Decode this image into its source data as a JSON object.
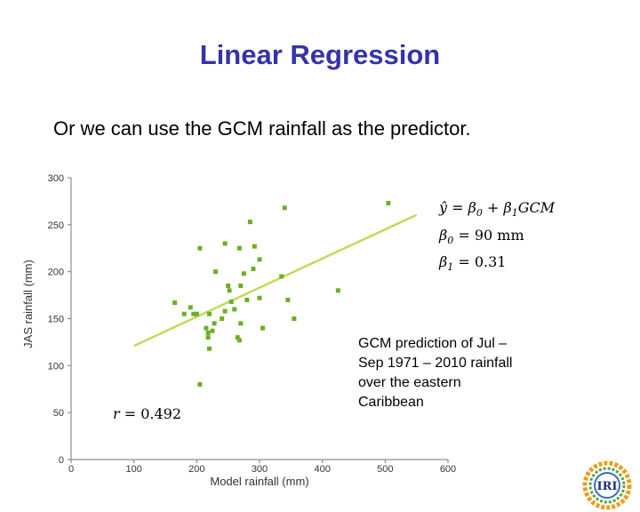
{
  "slide": {
    "title": "Linear Regression",
    "subtitle": "Or we can use the GCM rainfall as the predictor.",
    "caption_lines": [
      "GCM prediction of Jul –",
      "Sep 1971 – 2010  rainfall",
      "over the eastern",
      "Caribbean"
    ]
  },
  "logo": {
    "text": "IRI",
    "icon": "iri-logo-icon"
  },
  "chart_data": {
    "type": "scatter",
    "xlabel": "Model rainfall (mm)",
    "ylabel": "JAS rainfall (mm)",
    "xlim": [
      0,
      600
    ],
    "ylim": [
      0,
      300
    ],
    "x_ticks": [
      0,
      100,
      200,
      300,
      400,
      500,
      600
    ],
    "y_ticks": [
      0,
      50,
      100,
      150,
      200,
      250,
      300
    ],
    "point_color": "#6ab023",
    "line_color": "#c5d95a",
    "points": [
      [
        165,
        167
      ],
      [
        180,
        155
      ],
      [
        190,
        162
      ],
      [
        195,
        155
      ],
      [
        200,
        155
      ],
      [
        205,
        80
      ],
      [
        205,
        225
      ],
      [
        215,
        140
      ],
      [
        218,
        130
      ],
      [
        218,
        135
      ],
      [
        220,
        155
      ],
      [
        220,
        118
      ],
      [
        225,
        137
      ],
      [
        228,
        145
      ],
      [
        230,
        200
      ],
      [
        240,
        150
      ],
      [
        245,
        230
      ],
      [
        245,
        158
      ],
      [
        250,
        185
      ],
      [
        252,
        180
      ],
      [
        255,
        168
      ],
      [
        260,
        160
      ],
      [
        265,
        130
      ],
      [
        268,
        225
      ],
      [
        268,
        127
      ],
      [
        270,
        145
      ],
      [
        270,
        185
      ],
      [
        275,
        198
      ],
      [
        280,
        170
      ],
      [
        285,
        253
      ],
      [
        290,
        203
      ],
      [
        292,
        227
      ],
      [
        300,
        172
      ],
      [
        300,
        213
      ],
      [
        305,
        140
      ],
      [
        335,
        195
      ],
      [
        340,
        268
      ],
      [
        345,
        170
      ],
      [
        355,
        150
      ],
      [
        425,
        180
      ],
      [
        505,
        273
      ]
    ],
    "regression": {
      "intercept": 90,
      "slope": 0.31,
      "x_range": [
        100,
        550
      ]
    },
    "annotations": {
      "equation": {
        "line1_main": "ŷ = β",
        "line1_sub0": "0",
        "line1_plus": " + β",
        "line1_sub1": "1",
        "line1_end": "GCM",
        "line2_main": "β",
        "line2_sub": "0",
        "line2_end": " = 90 mm",
        "line3_main": "β",
        "line3_sub": "1",
        "line3_end": " = 0.31"
      },
      "r_prefix": "r",
      "r_value": " = 0.492"
    }
  }
}
